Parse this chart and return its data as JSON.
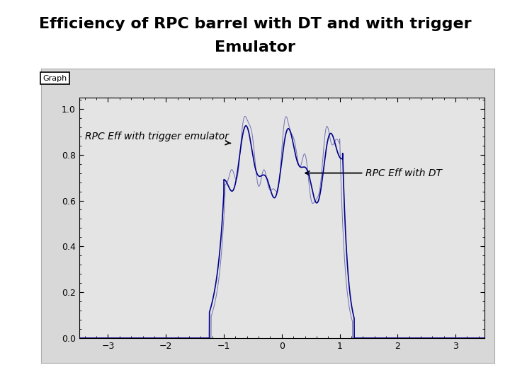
{
  "title_line1": "Efficiency of RPC barrel with DT and with trigger",
  "title_line2": "Emulator",
  "title_fontsize": 16,
  "title_fontweight": "bold",
  "xlim": [
    -3.5,
    3.5
  ],
  "ylim": [
    0,
    1.05
  ],
  "xticks": [
    -3,
    -2,
    -1,
    0,
    1,
    2,
    3
  ],
  "yticks": [
    0,
    0.2,
    0.4,
    0.6,
    0.8,
    1.0
  ],
  "fig_bg_color": "#ffffff",
  "plot_bg_color": "#e8e8e8",
  "outer_box_color": "#cccccc",
  "line_color": "#00008B",
  "annotation_dt": "RPC Eff with DT",
  "annotation_emu": "RPC Eff with trigger emulator",
  "annotation_fontsize": 10
}
